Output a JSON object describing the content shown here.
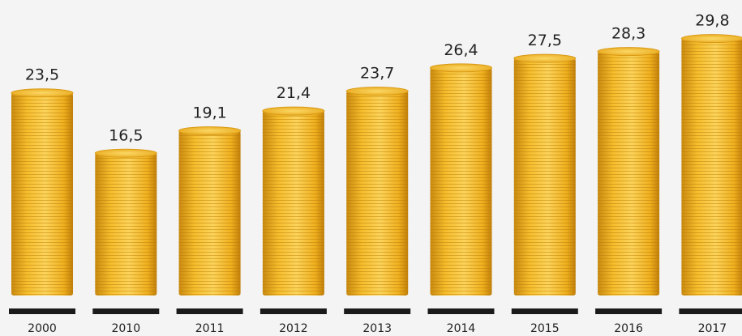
{
  "chart_data": {
    "type": "bar",
    "categories": [
      "2000",
      "2010",
      "2011",
      "2012",
      "2013",
      "2014",
      "2015",
      "2016",
      "2017"
    ],
    "values": [
      23.5,
      16.5,
      19.1,
      21.4,
      23.7,
      26.4,
      27.5,
      28.3,
      29.8
    ],
    "value_labels": [
      "23,5",
      "16,5",
      "19,1",
      "21,4",
      "23,7",
      "26,4",
      "27,5",
      "28,3",
      "29,8"
    ],
    "color": "#f2b626"
  }
}
